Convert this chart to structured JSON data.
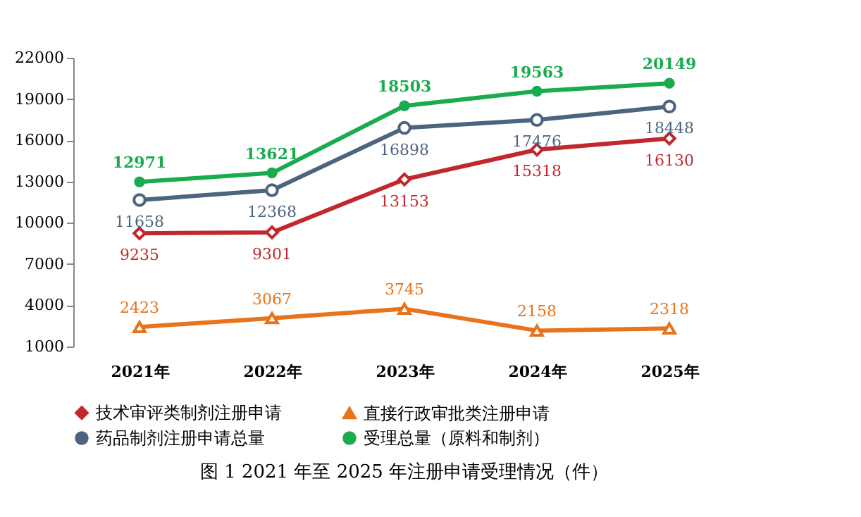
{
  "chart_data": {
    "type": "line",
    "categories": [
      "2021年",
      "2022年",
      "2023年",
      "2024年",
      "2025年"
    ],
    "series": [
      {
        "name": "技术审评类制剂注册申请",
        "color": "#c0282e",
        "marker": "diamond",
        "values": [
          9235,
          9301,
          13153,
          15318,
          16130
        ]
      },
      {
        "name": "直接行政审批类注册申请",
        "color": "#e8731a",
        "marker": "triangle",
        "values": [
          2423,
          3067,
          3745,
          2158,
          2318
        ]
      },
      {
        "name": "药品制剂注册申请总量",
        "color": "#4d6480",
        "marker": "circle",
        "values": [
          11658,
          12368,
          16898,
          17476,
          18448
        ]
      },
      {
        "name": "受理总量（原料和制剂）",
        "color": "#1bab4f",
        "marker": "circle",
        "values": [
          12971,
          13621,
          18503,
          19563,
          20149
        ]
      }
    ],
    "ylim": [
      1000,
      22000
    ],
    "yticks": [
      1000,
      4000,
      7000,
      10000,
      13000,
      16000,
      19000,
      22000
    ],
    "grid": false,
    "legend": "bottom",
    "data_labels": true,
    "line_style": "solid",
    "annotations": [
      "图 1   2021 年至 2025 年注册申请受理情况（件）"
    ]
  }
}
